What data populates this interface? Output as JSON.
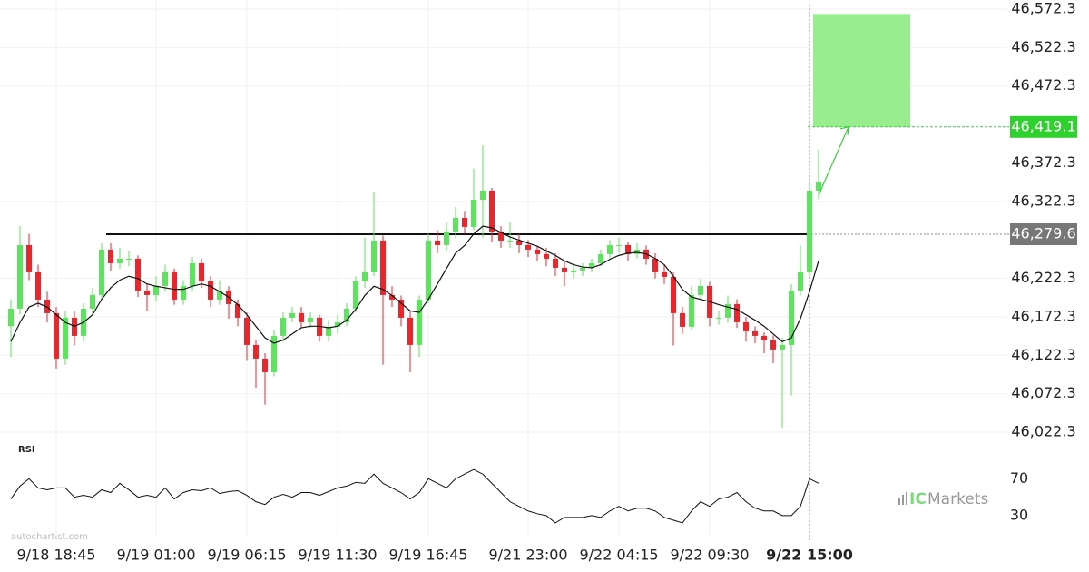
{
  "chart_data": {
    "type": "candlestick",
    "up_color": "#5ee35e",
    "down_color": "#e8262b",
    "open": [
      46160.0,
      46182.9,
      46265.5,
      46230.1,
      46194.7,
      46177.0,
      46118.0,
      46171.1,
      46147.5,
      46182.9,
      46200.6,
      46259.6,
      46241.9,
      46247.8,
      46247.8,
      46206.5,
      46200.6,
      46212.4,
      46230.1,
      46194.7,
      46212.4,
      46241.9,
      46218.3,
      46194.7,
      46206.5,
      46188.8,
      46171.1,
      46135.7,
      46118.0,
      46100.3,
      46147.5,
      46171.1,
      46177.0,
      46165.2,
      46171.1,
      46147.5,
      46159.3,
      46165.2,
      46182.9,
      46218.3,
      46230.1,
      46271.4,
      46200.6,
      46194.7,
      46171.1,
      46135.7,
      46194.7,
      46271.4,
      46265.5,
      46283.2,
      46300.9,
      46289.1,
      46324.5,
      46336.3,
      46283.2,
      46271.4,
      46271.4,
      46265.5,
      46259.6,
      46253.7,
      46247.8,
      46236.0,
      46230.1,
      46232.5,
      46236.0,
      46241.9,
      46253.7,
      46265.5,
      46265.5,
      46253.7,
      46259.6,
      46247.8,
      46230.1,
      46224.2,
      46177.0,
      46159.3,
      46200.6,
      46212.4,
      46171.1,
      46171.1,
      46188.8,
      46165.2,
      46153.4,
      46147.5,
      46141.6,
      46129.8,
      46135.7,
      46206.5,
      46230.1,
      46336.3
    ],
    "high": [
      46195,
      46290,
      46280,
      46240,
      46205,
      46185,
      46180,
      46180,
      46190,
      46210,
      46268,
      46268,
      46262,
      46258,
      46252,
      46215,
      46225,
      46240,
      46235,
      46220,
      46250,
      46248,
      46225,
      46220,
      46212,
      46195,
      46178,
      46142,
      46125,
      46155,
      46178,
      46185,
      46185,
      46178,
      46175,
      46168,
      46175,
      46190,
      46225,
      46275,
      46335,
      46278,
      46212,
      46200,
      46180,
      46200,
      46280,
      46285,
      46295,
      46315,
      46310,
      46365,
      46395,
      46340,
      46290,
      46295,
      46280,
      46272,
      46265,
      46262,
      46255,
      46245,
      46240,
      46242,
      46248,
      46260,
      46272,
      46275,
      46270,
      46268,
      46265,
      46255,
      46240,
      46230,
      46185,
      46212,
      46222,
      46218,
      46180,
      46200,
      46195,
      46172,
      46160,
      46152,
      46148,
      46145,
      46215,
      46265,
      46345,
      46390
    ],
    "low": [
      46120,
      46175,
      46220,
      46185,
      46165,
      46105,
      46110,
      46135,
      46140,
      46175,
      46195,
      46232,
      46235,
      46238,
      46198,
      46180,
      46192,
      46205,
      46188,
      46188,
      46205,
      46210,
      46185,
      46188,
      46170,
      46160,
      46115,
      46080,
      46058,
      46095,
      46140,
      46165,
      46158,
      46158,
      46140,
      46140,
      46150,
      46160,
      46178,
      46210,
      46225,
      46110,
      46185,
      46160,
      46100,
      46120,
      46190,
      46255,
      46258,
      46275,
      46280,
      46285,
      46275,
      46270,
      46262,
      46262,
      46255,
      46250,
      46245,
      46238,
      46225,
      46212,
      46222,
      46225,
      46230,
      46238,
      46248,
      46255,
      46245,
      46248,
      46240,
      46222,
      46215,
      46135,
      46150,
      46155,
      46195,
      46160,
      46162,
      46165,
      46158,
      46140,
      46138,
      46125,
      46112,
      46028,
      46070,
      46200,
      46225,
      46325
    ],
    "close": [
      46182.9,
      46265.5,
      46230.1,
      46194.7,
      46177.0,
      46118.0,
      46171.1,
      46147.5,
      46182.9,
      46200.6,
      46259.6,
      46241.9,
      46247.8,
      46247.8,
      46206.5,
      46200.6,
      46212.4,
      46230.1,
      46194.7,
      46212.4,
      46241.9,
      46218.3,
      46194.7,
      46206.5,
      46188.8,
      46171.1,
      46135.7,
      46118.0,
      46100.3,
      46147.5,
      46171.1,
      46177.0,
      46165.2,
      46171.1,
      46147.5,
      46159.3,
      46165.2,
      46182.9,
      46218.3,
      46230.1,
      46271.4,
      46200.6,
      46194.7,
      46171.1,
      46135.7,
      46194.7,
      46271.4,
      46265.5,
      46283.2,
      46300.9,
      46289.1,
      46324.5,
      46336.3,
      46283.2,
      46271.4,
      46271.4,
      46265.5,
      46259.6,
      46253.7,
      46247.8,
      46236.0,
      46230.1,
      46232.5,
      46236.0,
      46241.9,
      46253.7,
      46265.5,
      46265.5,
      46253.7,
      46259.6,
      46247.8,
      46230.1,
      46224.2,
      46177.0,
      46159.3,
      46200.6,
      46212.4,
      46171.1,
      46171.1,
      46188.8,
      46165.2,
      46153.4,
      46147.5,
      46141.6,
      46129.8,
      46135.7,
      46206.5,
      46230.1,
      46336.3,
      46348.1
    ],
    "ma": [
      46140,
      46165,
      46185,
      46190,
      46185,
      46175,
      46165,
      46160,
      46165,
      46175,
      46195,
      46210,
      46220,
      46225,
      46222,
      46215,
      46212,
      46210,
      46208,
      46208,
      46212,
      46215,
      46212,
      46205,
      46198,
      46188,
      46175,
      46160,
      46145,
      46138,
      46142,
      46150,
      46158,
      46160,
      46160,
      46158,
      46160,
      46168,
      46182,
      46200,
      46212,
      46208,
      46200,
      46190,
      46180,
      46178,
      46195,
      46215,
      46235,
      46255,
      46265,
      46280,
      46290,
      46288,
      46282,
      46276,
      46272,
      46268,
      46264,
      46258,
      46252,
      46245,
      46240,
      46237,
      46236,
      46240,
      46247,
      46252,
      46255,
      46256,
      46254,
      46248,
      46240,
      46225,
      46208,
      46198,
      46195,
      46192,
      46188,
      46185,
      46182,
      46175,
      46168,
      46160,
      46150,
      46140,
      46145,
      46170,
      46205,
      46245
    ],
    "ylim": [
      46022.3,
      46572.3
    ],
    "yticks": [
      {
        "value": 46572.3,
        "label": "46,572.3"
      },
      {
        "value": 46522.3,
        "label": "46,522.3"
      },
      {
        "value": 46472.3,
        "label": "46,472.3"
      },
      {
        "value": 46372.3,
        "label": "46,372.3"
      },
      {
        "value": 46322.3,
        "label": "46,322.3"
      },
      {
        "value": 46222.3,
        "label": "46,222.3"
      },
      {
        "value": 46172.3,
        "label": "46,172.3"
      },
      {
        "value": 46122.3,
        "label": "46,122.3"
      },
      {
        "value": 46072.3,
        "label": "46,072.3"
      },
      {
        "value": 46022.3,
        "label": "46,022.3"
      }
    ],
    "xticks": [
      {
        "value": 5,
        "label": "9/18 18:45"
      },
      {
        "value": 16,
        "label": "9/19 01:00"
      },
      {
        "value": 26,
        "label": "9/19 06:15"
      },
      {
        "value": 36,
        "label": "9/19 11:30"
      },
      {
        "value": 46,
        "label": "9/19 16:45"
      },
      {
        "value": 57,
        "label": "9/21 23:00"
      },
      {
        "value": 67,
        "label": "9/22 04:15"
      },
      {
        "value": 77,
        "label": "9/22 09:30"
      },
      {
        "value": 88,
        "label": "9/22 15:00"
      }
    ],
    "current_x": 88,
    "level": {
      "value": 46279.6,
      "label": "46,279.6"
    },
    "target": {
      "value": 46419.1,
      "label": "46,419.1",
      "top": 46566
    },
    "rsi_label": "RSI",
    "rsi": [
      48,
      62,
      70,
      60,
      58,
      60,
      60,
      50,
      52,
      50,
      58,
      55,
      65,
      58,
      50,
      52,
      50,
      60,
      48,
      55,
      58,
      57,
      60,
      54,
      56,
      57,
      52,
      45,
      42,
      50,
      53,
      50,
      55,
      55,
      52,
      56,
      60,
      62,
      66,
      65,
      75,
      65,
      60,
      55,
      48,
      55,
      70,
      65,
      60,
      70,
      75,
      80,
      75,
      65,
      55,
      45,
      40,
      35,
      32,
      30,
      22,
      28,
      28,
      28,
      30,
      28,
      35,
      40,
      35,
      38,
      38,
      35,
      28,
      25,
      22,
      35,
      45,
      40,
      48,
      50,
      55,
      45,
      38,
      35,
      35,
      30,
      30,
      40,
      70,
      65
    ],
    "rsi_lim": [
      18,
      92
    ],
    "rsi_ticks": [
      70,
      30
    ],
    "watermark": "autochartist.com",
    "brand_prefix": "IC",
    "brand_name": "Markets"
  }
}
